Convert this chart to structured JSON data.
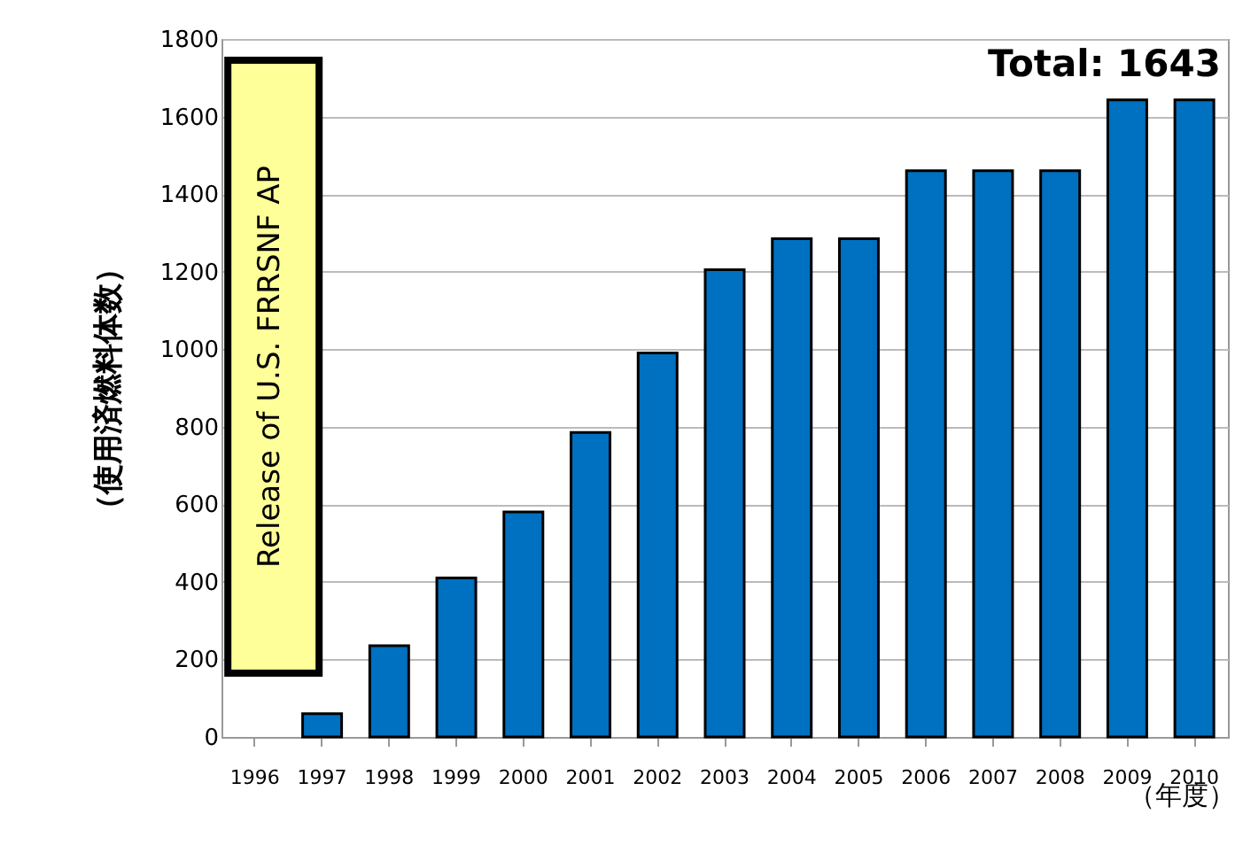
{
  "chart_data": {
    "type": "bar",
    "ylabel": "（使用済燃料体数）",
    "xlabel": "（年度）",
    "categories": [
      "1996",
      "1997",
      "1998",
      "1999",
      "2000",
      "2001",
      "2002",
      "2003",
      "2004",
      "2005",
      "2006",
      "2007",
      "2008",
      "2009",
      "2010"
    ],
    "series": [
      {
        "color": "#0070c0",
        "values": [
          null,
          60,
          235,
          410,
          580,
          785,
          990,
          1205,
          1285,
          1285,
          1460,
          1460,
          1460,
          1643,
          1643
        ]
      }
    ],
    "bands": [
      {
        "axis": "x",
        "from": "1996",
        "to": "1997",
        "label": "Release of U.S. FRRSNF AP",
        "color": "#ffff99"
      }
    ],
    "annotations": [
      "Total: 1643"
    ],
    "ylim": [
      0,
      1800
    ],
    "yticks": [
      0,
      200,
      400,
      600,
      800,
      1000,
      1200,
      1400,
      1600,
      1800
    ],
    "grid": "y"
  }
}
